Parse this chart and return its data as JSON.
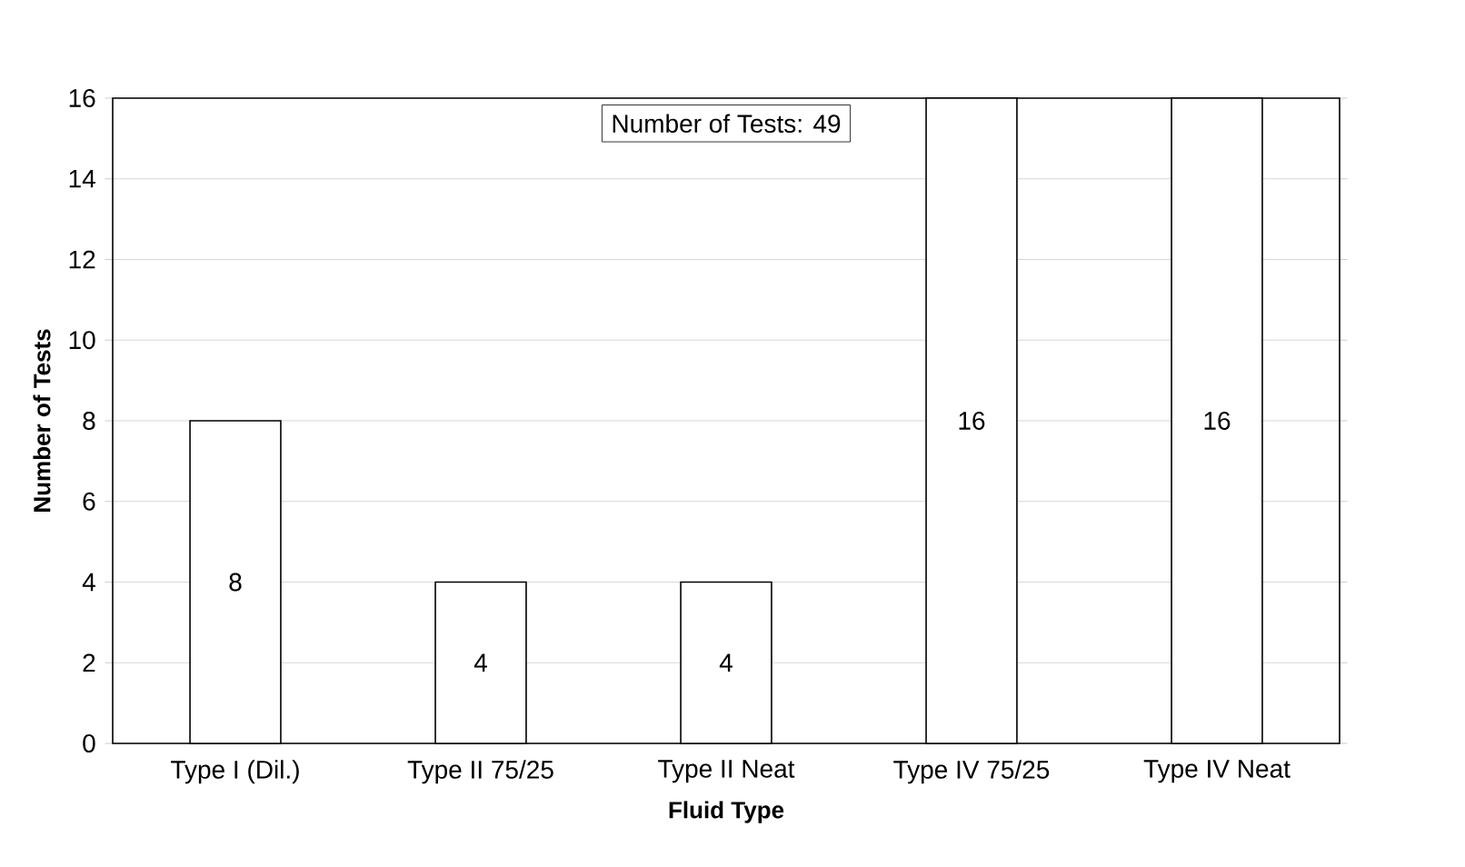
{
  "chart_data": {
    "type": "bar",
    "xlabel": "Fluid Type",
    "ylabel": "Number of Tests",
    "categories": [
      "Type I (Dil.)",
      "Type II 75/25",
      "Type II Neat",
      "Type IV 75/25",
      "Type IV Neat"
    ],
    "values": [
      8,
      4,
      4,
      16,
      16
    ],
    "color": "#ffffff",
    "data_labels": true,
    "ylim": [
      0,
      16
    ],
    "yticks": [
      0,
      2,
      4,
      6,
      8,
      10,
      12,
      14,
      16
    ],
    "grid": "y",
    "annotations": [
      "Number of Tests: 49"
    ]
  }
}
